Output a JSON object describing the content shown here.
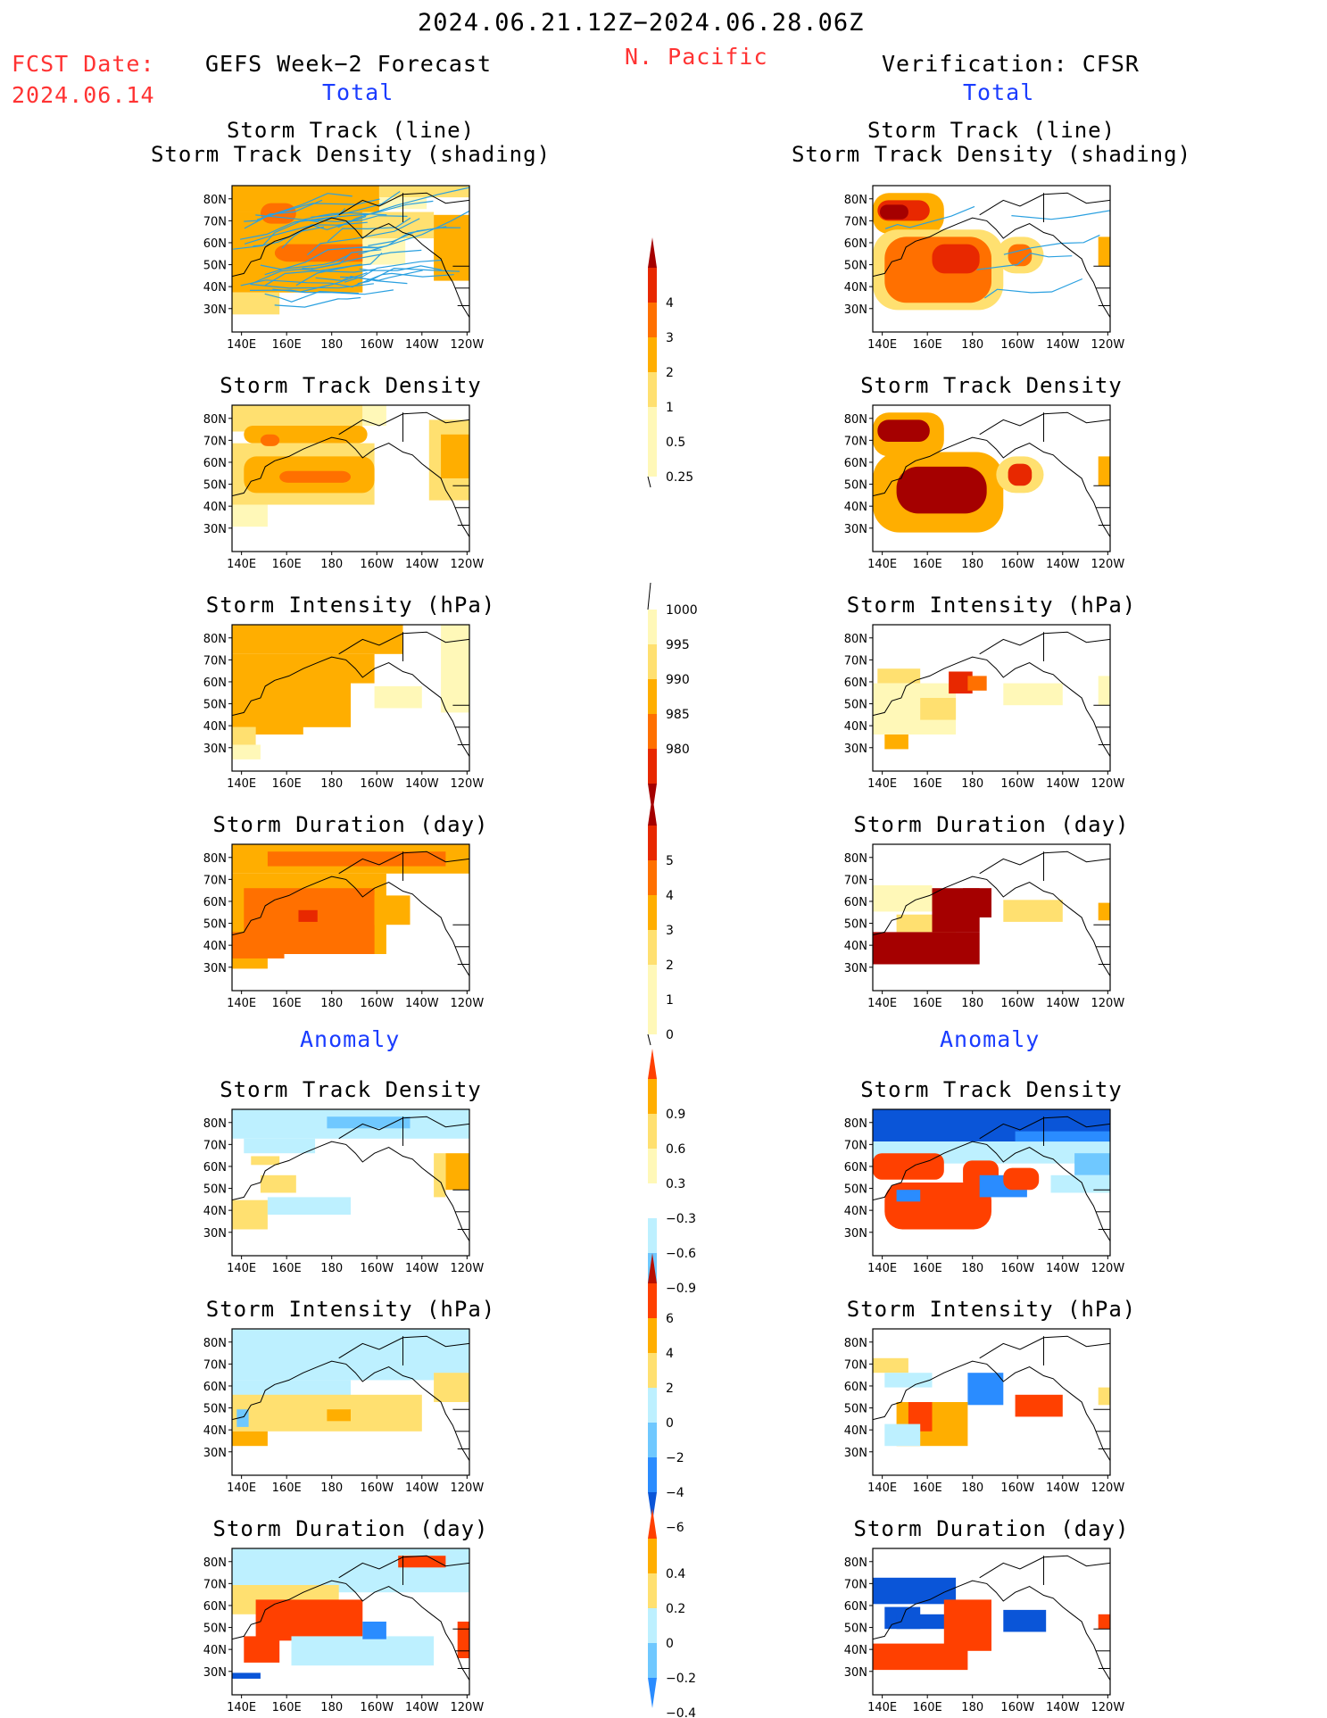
{
  "header": {
    "date_range": "2024.06.21.12Z−2024.06.28.06Z",
    "fcst_label": "FCST Date:",
    "fcst_date": "2024.06.14",
    "region": "N. Pacific",
    "left_title": "GEFS Week−2 Forecast",
    "right_title": "Verification: CFSR",
    "total_label": "Total",
    "anomaly_label": "Anomaly"
  },
  "axes": {
    "lat_ticks": [
      "80N",
      "70N",
      "60N",
      "50N",
      "40N",
      "30N"
    ],
    "lon_ticks": [
      "140E",
      "160E",
      "180",
      "160W",
      "140W",
      "120W"
    ]
  },
  "colors": {
    "pos": [
      "#fff8b8",
      "#ffe070",
      "#ffae00",
      "#ff7000",
      "#e82800",
      "#a50000"
    ],
    "anom_neg": [
      "#bdf0ff",
      "#6fc8ff",
      "#2a8cff",
      "#0a55d8"
    ],
    "anom_pos": [
      "#ffe070",
      "#ffae00",
      "#ff4000"
    ],
    "track_line": "#2aa0e0",
    "coast": "#000000"
  },
  "colorbars": [
    {
      "name": "density-total",
      "labels": [
        "4",
        "3",
        "2",
        "1",
        "0.5",
        "0.25"
      ]
    },
    {
      "name": "intensity-total",
      "labels": [
        "1000",
        "995",
        "990",
        "985",
        "980"
      ]
    },
    {
      "name": "duration-total",
      "labels": [
        "5",
        "4",
        "3",
        "2",
        "1",
        "0"
      ]
    },
    {
      "name": "density-anom",
      "labels": [
        "0.9",
        "0.6",
        "0.3",
        "−0.3",
        "−0.6",
        "−0.9"
      ]
    },
    {
      "name": "intensity-anom",
      "labels": [
        "6",
        "4",
        "2",
        "0",
        "−2",
        "−4",
        "−6"
      ]
    },
    {
      "name": "duration-anom",
      "labels": [
        "0.4",
        "0.2",
        "0",
        "−0.2",
        "−0.4"
      ]
    }
  ],
  "chart_data": [
    {
      "type": "heatmap",
      "panel": "forecast-total",
      "title_lines": [
        "Storm Track (line)",
        "Storm Track Density (shading)"
      ]
    },
    {
      "type": "heatmap",
      "panel": "verification-total",
      "title_lines": [
        "Storm Track (line)",
        "Storm Track Density (shading)"
      ]
    },
    {
      "type": "heatmap",
      "panel": "forecast-total",
      "title_lines": [
        "Storm Track Density"
      ]
    },
    {
      "type": "heatmap",
      "panel": "verification-total",
      "title_lines": [
        "Storm Track Density"
      ]
    },
    {
      "type": "heatmap",
      "panel": "forecast-total",
      "title_lines": [
        "Storm Intensity (hPa)"
      ]
    },
    {
      "type": "heatmap",
      "panel": "verification-total",
      "title_lines": [
        "Storm Intensity (hPa)"
      ]
    },
    {
      "type": "heatmap",
      "panel": "forecast-total",
      "title_lines": [
        "Storm Duration (day)"
      ]
    },
    {
      "type": "heatmap",
      "panel": "verification-total",
      "title_lines": [
        "Storm Duration (day)"
      ]
    },
    {
      "type": "heatmap",
      "panel": "forecast-anomaly",
      "title_lines": [
        "Storm Track Density"
      ]
    },
    {
      "type": "heatmap",
      "panel": "verification-anomaly",
      "title_lines": [
        "Storm Track Density"
      ]
    },
    {
      "type": "heatmap",
      "panel": "forecast-anomaly",
      "title_lines": [
        "Storm Intensity (hPa)"
      ]
    },
    {
      "type": "heatmap",
      "panel": "verification-anomaly",
      "title_lines": [
        "Storm Intensity (hPa)"
      ]
    },
    {
      "type": "heatmap",
      "panel": "forecast-anomaly",
      "title_lines": [
        "Storm Duration (day)"
      ]
    },
    {
      "type": "heatmap",
      "panel": "verification-anomaly",
      "title_lines": [
        "Storm Duration (day)"
      ]
    }
  ]
}
